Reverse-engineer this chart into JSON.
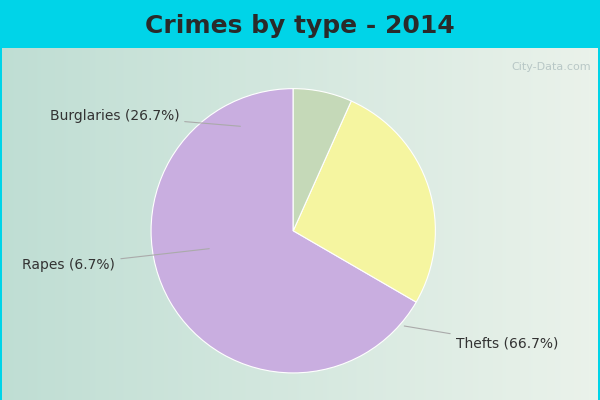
{
  "title": "Crimes by type - 2014",
  "slices": [
    {
      "label": "Thefts (66.7%)",
      "value": 66.7,
      "color": "#c9aee0"
    },
    {
      "label": "Burglaries (26.7%)",
      "value": 26.7,
      "color": "#f5f5a0"
    },
    {
      "label": "Rapes (6.7%)",
      "value": 6.7,
      "color": "#c5d9b8"
    }
  ],
  "background_top": "#00d4e8",
  "background_main_left": "#c5dfd8",
  "background_main_right": "#e8f0e8",
  "title_fontsize": 18,
  "label_fontsize": 10,
  "watermark": "City-Data.com",
  "startangle": 90,
  "title_color": "#2a2a2a",
  "label_color": "#333333",
  "line_color": "#aaaaaa"
}
